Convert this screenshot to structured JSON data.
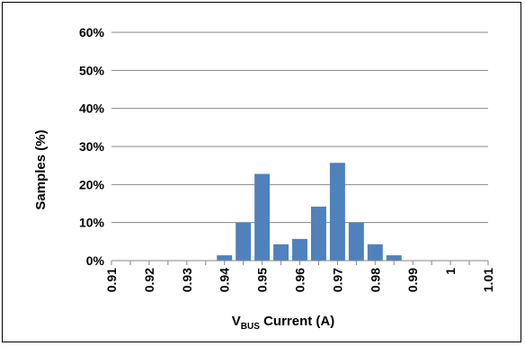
{
  "chart_data": {
    "type": "bar",
    "title": "",
    "xlabel_main": "V",
    "xlabel_sub": "BUS",
    "xlabel_rest": " Current (A)",
    "ylabel": "Samples (%)",
    "x_ticks": [
      "0.91",
      "0.92",
      "0.93",
      "0.94",
      "0.95",
      "0.96",
      "0.97",
      "0.98",
      "0.99",
      "1",
      "1.01"
    ],
    "xlim": [
      0.91,
      1.01
    ],
    "y_ticks": [
      "0%",
      "10%",
      "20%",
      "30%",
      "40%",
      "50%",
      "60%"
    ],
    "ylim": [
      0,
      60
    ],
    "grid": true,
    "bar_color": "#4F81BD",
    "grid_color": "#868686",
    "x": [
      0.935,
      0.94,
      0.945,
      0.95,
      0.955,
      0.96,
      0.965,
      0.97,
      0.975,
      0.98,
      0.985
    ],
    "values": [
      0,
      1.4,
      10,
      22.8,
      4.3,
      5.7,
      14.2,
      25.7,
      10,
      4.3,
      1.4
    ]
  }
}
